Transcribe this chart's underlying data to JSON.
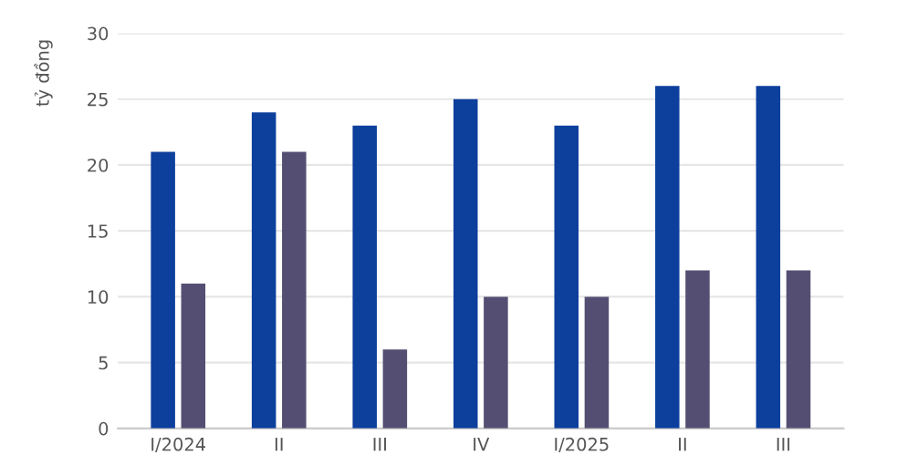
{
  "chart_data": {
    "type": "bar",
    "ylabel": "tỷ đồng",
    "categories": [
      "I/2024",
      "II",
      "III",
      "IV",
      "I/2025",
      "II",
      "III"
    ],
    "series": [
      {
        "color": "#0d3f9c",
        "values": [
          21,
          24,
          23,
          25,
          23,
          26,
          26
        ]
      },
      {
        "color": "#544f72",
        "values": [
          11,
          21,
          6,
          10,
          10,
          12,
          12
        ]
      }
    ],
    "ylim": [
      0,
      30
    ],
    "yticks": [
      0,
      5,
      10,
      15,
      20,
      25,
      30
    ],
    "grid": "y",
    "legend": false
  }
}
